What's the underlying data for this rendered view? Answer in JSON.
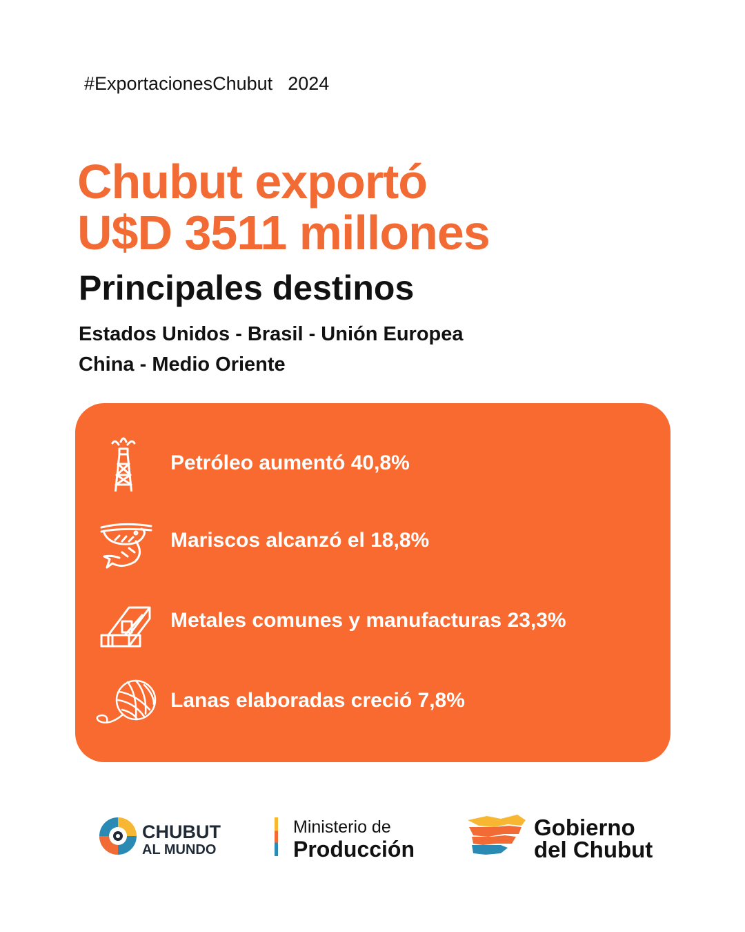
{
  "header": {
    "hashtag": "#ExportacionesChubut",
    "year": "2024"
  },
  "headline": {
    "line1": "Chubut exportó",
    "line2": "U$D 3511 millones"
  },
  "subheading": "Principales destinos",
  "destinations": {
    "line1": "Estados Unidos - Brasil - Unión Europea",
    "line2": "China - Medio Oriente"
  },
  "items": [
    {
      "icon": "oil-derrick-icon",
      "text": "Petróleo aumentó  40,8%"
    },
    {
      "icon": "shrimp-icon",
      "text": "Mariscos alcanzó el 18,8%"
    },
    {
      "icon": "metal-bars-icon",
      "text": "Metales comunes y manufacturas  23,3%"
    },
    {
      "icon": "yarn-ball-icon",
      "text": "Lanas elaboradas creció  7,8%"
    }
  ],
  "footer": {
    "logo1": {
      "line1": "CHUBUT",
      "line2": "AL MUNDO"
    },
    "logo2": {
      "line1": "Ministerio de",
      "line2": "Producción"
    },
    "logo3": {
      "line1": "Gobierno",
      "line2": "del Chubut"
    }
  },
  "colors": {
    "accent": "#f26b35",
    "card": "#f96a30"
  }
}
